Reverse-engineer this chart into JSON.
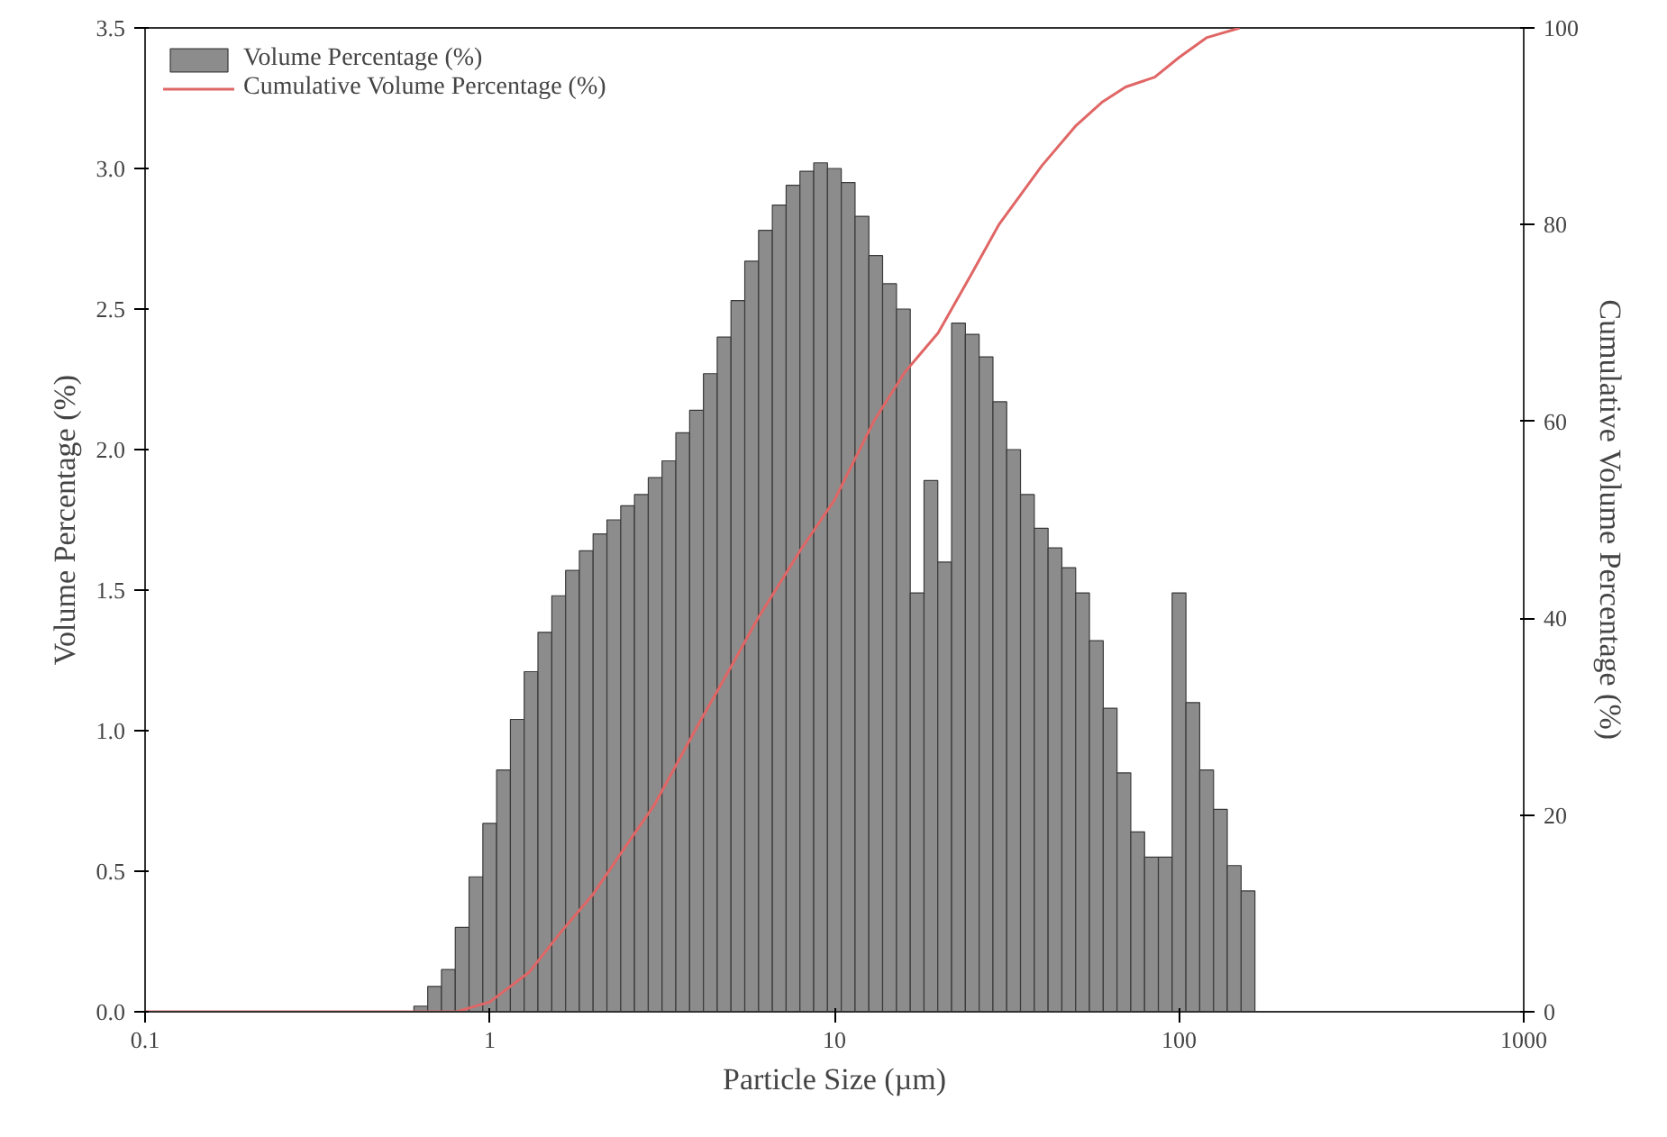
{
  "chart_data": {
    "type": "histogram",
    "xlabel": "Particle Size (µm)",
    "ylabel": "Volume Percentage (%)",
    "y2label": "Cumulative Volume Percentage (%)",
    "log": "x",
    "xlim": [
      0.1,
      1000
    ],
    "xticks": [
      0.1,
      1,
      10,
      100,
      1000
    ],
    "ylim": [
      0,
      3.5
    ],
    "yticks": [
      {
        "value": 0,
        "label": "0.0"
      },
      {
        "value": 0.5,
        "label": "0.5"
      },
      {
        "value": 1,
        "label": "1.0"
      },
      {
        "value": 1.5,
        "label": "1.5"
      },
      {
        "value": 2,
        "label": "2.0"
      },
      {
        "value": 2.5,
        "label": "2.5"
      },
      {
        "value": 3,
        "label": "3.0"
      },
      {
        "value": 3.5,
        "label": "3.5"
      }
    ],
    "y2lim": [
      0,
      100
    ],
    "y2ticks": [
      0,
      20,
      40,
      60,
      80,
      100
    ],
    "grid": false,
    "legend": "top left",
    "series": [
      {
        "name": "Volume Percentage (%)",
        "color": "#8c8c8c",
        "bins": [
          0.6026,
          0.6607,
          0.7244,
          0.7943,
          0.871,
          0.955,
          1.047,
          1.148,
          1.259,
          1.38,
          1.514,
          1.66,
          1.82,
          1.995,
          2.188,
          2.399,
          2.63,
          2.884,
          3.162,
          3.467,
          3.802,
          4.169,
          4.571,
          5.012,
          5.495,
          6.026,
          6.607,
          7.244,
          7.943,
          8.71,
          9.55,
          10.47,
          11.48,
          12.59,
          13.8,
          15.14,
          16.6,
          18.2,
          19.95,
          21.88,
          23.99,
          26.3,
          28.84,
          31.62,
          34.67,
          38.02,
          41.69,
          45.71,
          50.12,
          54.95,
          60.26,
          66.07,
          72.44,
          79.43,
          87.1,
          95.5,
          104.7,
          114.8,
          125.9,
          138.0,
          151.4,
          166.0
        ],
        "values": [
          0.02,
          0.09,
          0.15,
          0.3,
          0.48,
          0.67,
          0.86,
          1.04,
          1.21,
          1.35,
          1.48,
          1.57,
          1.64,
          1.7,
          1.75,
          1.8,
          1.84,
          1.9,
          1.96,
          2.06,
          2.14,
          2.27,
          2.4,
          2.53,
          2.67,
          2.78,
          2.87,
          2.94,
          2.99,
          3.02,
          3.0,
          2.95,
          2.83,
          2.69,
          2.59,
          2.5,
          1.49,
          1.89,
          1.6,
          2.45,
          2.41,
          2.33,
          2.17,
          2.0,
          1.84,
          1.72,
          1.65,
          1.58,
          1.49,
          1.32,
          1.08,
          0.85,
          0.64,
          0.55,
          0.55,
          1.49,
          1.1,
          0.86,
          0.72,
          0.52,
          0.43
        ]
      },
      {
        "name": "Cumulative Volume Percentage (%)",
        "type": "line",
        "axis": "y2",
        "color": "#e06666",
        "x": [
          0.1,
          0.8,
          1.0,
          1.3,
          1.6,
          2,
          2.5,
          3,
          4,
          5,
          6,
          8,
          10,
          13,
          16,
          20,
          25,
          30,
          40,
          50,
          60,
          70,
          85,
          100,
          120,
          150
        ],
        "values": [
          0,
          0,
          1,
          4,
          8,
          12,
          17,
          21,
          29,
          35,
          40,
          47,
          52,
          60,
          65,
          69,
          75,
          80,
          86,
          90,
          92.5,
          94,
          95,
          97,
          99,
          100
        ]
      }
    ]
  }
}
